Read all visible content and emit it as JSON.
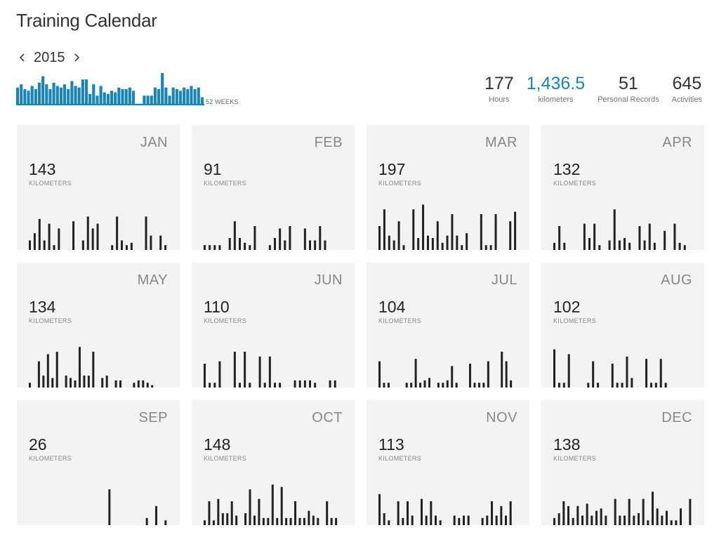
{
  "title": "Training Calendar",
  "year_nav": {
    "year": "2015",
    "prev_icon": "chevron-left-icon",
    "next_icon": "chevron-right-icon"
  },
  "weeks_label": "52 WEEKS",
  "colors": {
    "accent": "#1a85b4",
    "bar": "#222222",
    "tile_bg": "#f3f3f3"
  },
  "stats": [
    {
      "value": "177",
      "label": "Hours",
      "accent": false
    },
    {
      "value": "1,436.5",
      "label": "kilometers",
      "accent": true
    },
    {
      "value": "51",
      "label": "Personal Records",
      "accent": false
    },
    {
      "value": "645",
      "label": "Activities",
      "accent": false
    }
  ],
  "chart_data": [
    {
      "type": "bar",
      "xlabel": "52 WEEKS",
      "values": [
        0.55,
        0.65,
        0.5,
        0.45,
        0.6,
        0.5,
        0.7,
        0.9,
        0.65,
        0.5,
        0.7,
        0.6,
        0.55,
        0.65,
        0.5,
        0.75,
        0.6,
        0.55,
        0.8,
        0.8,
        0.35,
        0.65,
        0.3,
        0.6,
        0.4,
        0.35,
        0.45,
        0.4,
        0.55,
        0.5,
        0.5,
        0.55,
        0.45,
        0.05,
        0.05,
        0.3,
        0.3,
        0.3,
        0.55,
        0.5,
        1.0,
        0.55,
        0.3,
        0.55,
        0.5,
        0.45,
        0.55,
        0.5,
        0.6,
        0.5,
        0.55,
        0.25
      ]
    },
    {
      "type": "bar",
      "month": "JAN",
      "total": "143",
      "unit": "KILOMETERS",
      "values": [
        0.2,
        0.35,
        0.65,
        0.2,
        0.55,
        0.1,
        0.45,
        0,
        0,
        0.6,
        0,
        0.2,
        0.7,
        0.45,
        0.55,
        0,
        0,
        0.1,
        0.7,
        0.2,
        0.1,
        0.15,
        0,
        0,
        0.7,
        0.3,
        0,
        0.3,
        0.1
      ]
    },
    {
      "type": "bar",
      "month": "FEB",
      "total": "91",
      "unit": "KILOMETERS",
      "values": [
        0.1,
        0.1,
        0.1,
        0.1,
        0,
        0.25,
        0.6,
        0.25,
        0.15,
        0.1,
        0.5,
        0,
        0,
        0.1,
        0.25,
        0.45,
        0.2,
        0.5,
        0,
        0,
        0.45,
        0.2,
        0.2,
        0.5,
        0.2,
        0,
        0,
        0
      ]
    },
    {
      "type": "bar",
      "month": "MAR",
      "total": "197",
      "unit": "KILOMETERS",
      "values": [
        0.5,
        0.85,
        0.3,
        0.2,
        0.6,
        0.1,
        0,
        0.85,
        0.25,
        0.95,
        0.3,
        0.25,
        0.6,
        0.15,
        0.3,
        0.75,
        0.3,
        0.1,
        0.35,
        0,
        0,
        0.75,
        0.1,
        0.1,
        0.75,
        0,
        0,
        0.6,
        0.8
      ]
    },
    {
      "type": "bar",
      "month": "APR",
      "total": "132",
      "unit": "KILOMETERS",
      "values": [
        0.15,
        0.5,
        0.15,
        0,
        0,
        0,
        0.55,
        0.25,
        0.55,
        0.1,
        0,
        0.2,
        0.85,
        0.2,
        0.25,
        0.15,
        0,
        0.5,
        0.2,
        0.55,
        0.15,
        0,
        0.4,
        0,
        0.55,
        0.15,
        0.1,
        0
      ]
    },
    {
      "type": "bar",
      "month": "MAY",
      "total": "134",
      "unit": "KILOMETERS",
      "values": [
        0.1,
        0,
        0.55,
        0.25,
        0.7,
        0.2,
        0.75,
        0,
        0.25,
        0.2,
        0.15,
        0.85,
        0.25,
        0.25,
        0.75,
        0,
        0.2,
        0.25,
        0,
        0.15,
        0.15,
        0,
        0,
        0.1,
        0.15,
        0.15,
        0.1,
        0.05,
        0,
        0,
        0
      ]
    },
    {
      "type": "bar",
      "month": "JUN",
      "total": "110",
      "unit": "KILOMETERS",
      "values": [
        0.5,
        0.1,
        0.1,
        0.55,
        0,
        0,
        0.75,
        0.1,
        0.75,
        0.1,
        0,
        0.65,
        0.1,
        0.65,
        0.1,
        0.1,
        0,
        0,
        0.15,
        0.15,
        0.15,
        0.15,
        0.1,
        0,
        0,
        0.15,
        0.15,
        0
      ]
    },
    {
      "type": "bar",
      "month": "JUL",
      "total": "104",
      "unit": "KILOMETERS",
      "values": [
        0.55,
        0.1,
        0.1,
        0,
        0,
        0,
        0.1,
        0.1,
        0.6,
        0.1,
        0.15,
        0.2,
        0,
        0.1,
        0.1,
        0.15,
        0.45,
        0.1,
        0,
        0,
        0.5,
        0.1,
        0.1,
        0.1,
        0.55,
        0,
        0,
        0.75,
        0.55,
        0.15,
        0
      ]
    },
    {
      "type": "bar",
      "month": "AUG",
      "total": "102",
      "unit": "KILOMETERS",
      "values": [
        0.8,
        0.1,
        0.1,
        0.7,
        0,
        0,
        0,
        0.1,
        0.55,
        0.1,
        0,
        0,
        0.5,
        0.1,
        0.1,
        0.65,
        0.2,
        0,
        0,
        0.6,
        0.1,
        0.1,
        0.6,
        0.1,
        0,
        0,
        0,
        0,
        0
      ]
    },
    {
      "type": "bar",
      "month": "SEP",
      "total": "26",
      "unit": "KILOMETERS",
      "values": [
        0,
        0,
        0,
        0,
        0,
        0,
        0,
        0,
        0,
        0,
        0,
        0,
        0,
        0,
        0,
        0,
        0,
        0.75,
        0,
        0,
        0,
        0,
        0,
        0,
        0,
        0.15,
        0,
        0.4,
        0,
        0.1
      ]
    },
    {
      "type": "bar",
      "month": "OCT",
      "total": "148",
      "unit": "KILOMETERS",
      "values": [
        0.1,
        0.5,
        0.1,
        0.55,
        0.25,
        0.25,
        0.5,
        0.2,
        0,
        0.25,
        0.75,
        0.2,
        0.55,
        0.15,
        0.15,
        0.85,
        0.15,
        0.8,
        0.15,
        0.15,
        0.5,
        0.15,
        0.15,
        0.3,
        0.2,
        0.15,
        0,
        0.5,
        0.15,
        0.15,
        0
      ]
    },
    {
      "type": "bar",
      "month": "NOV",
      "total": "113",
      "unit": "KILOMETERS",
      "values": [
        0.65,
        0.25,
        0.1,
        0,
        0.5,
        0.15,
        0.5,
        0.2,
        0,
        0.55,
        0.2,
        0.5,
        0.2,
        0.1,
        0,
        0,
        0.2,
        0.15,
        0.2,
        0.2,
        0,
        0,
        0.15,
        0.2,
        0.5,
        0.2,
        0.4,
        0.2,
        0.5,
        0
      ]
    },
    {
      "type": "bar",
      "month": "DEC",
      "total": "138",
      "unit": "KILOMETERS",
      "values": [
        0.15,
        0.25,
        0.5,
        0.4,
        0.15,
        0.4,
        0.2,
        0.45,
        0.2,
        0.3,
        0.35,
        0.2,
        0,
        0.55,
        0.2,
        0.2,
        0.55,
        0.2,
        0.25,
        0.55,
        0.1,
        0.7,
        0.35,
        0.2,
        0.3,
        0.1,
        0.1,
        0.35,
        0,
        0.55
      ]
    }
  ]
}
